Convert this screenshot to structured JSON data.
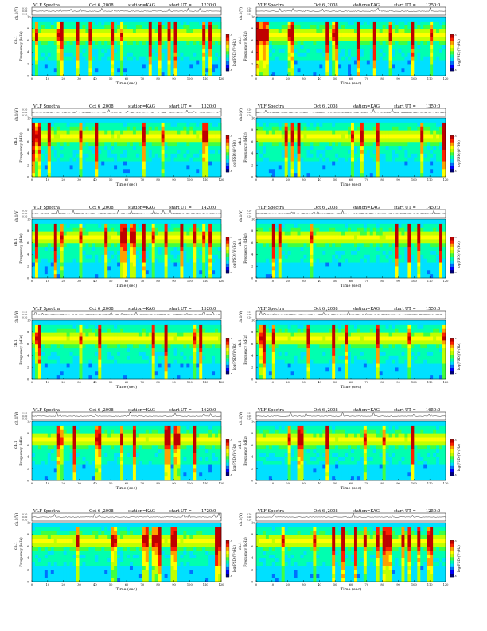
{
  "page": {
    "background": "#ffffff"
  },
  "panel_common": {
    "title_label": "VLF Spectra",
    "date": "Oct 6 ,2008",
    "station": "station=KAG",
    "start_label": "start  UT  =",
    "ch_axis_label": "ch.1(V)",
    "ch_ticks": [
      "0.20",
      "0.00",
      "0.20"
    ],
    "freq_axis_label": "Frequency  (kHz)",
    "freq_axis_prefix": "ch.1",
    "freq_ticks": [
      "0",
      "2",
      "4",
      "6",
      "8",
      "10"
    ],
    "x_axis_label": "Time  (sec)",
    "x_ticks": [
      "0",
      "10",
      "20",
      "30",
      "40",
      "50",
      "60",
      "70",
      "80",
      "90",
      "100",
      "110",
      "120"
    ],
    "colorbar_label": "log(PSD)(V²/Hz)",
    "colorbar_ticks": [
      "-3",
      "-6"
    ]
  },
  "colormap": [
    "#00007a",
    "#0000ff",
    "#0070ff",
    "#00e0ff",
    "#00ffb0",
    "#40ff40",
    "#c0ff00",
    "#ffff00",
    "#ffa000",
    "#ff2000",
    "#c00000"
  ],
  "panels": [
    {
      "start_ut": "1220:0",
      "hour": 12,
      "minute": 20,
      "channel": 1
    },
    {
      "start_ut": "1250:0",
      "hour": 12,
      "minute": 50,
      "channel": 1
    },
    {
      "start_ut": "1320:0",
      "hour": 13,
      "minute": 20,
      "channel": 1
    },
    {
      "start_ut": "1350:0",
      "hour": 13,
      "minute": 50,
      "channel": 1
    },
    {
      "start_ut": "1420:0",
      "hour": 14,
      "minute": 20,
      "channel": 1
    },
    {
      "start_ut": "1450:0",
      "hour": 14,
      "minute": 50,
      "channel": 1
    },
    {
      "start_ut": "1520:0",
      "hour": 15,
      "minute": 20,
      "channel": 1
    },
    {
      "start_ut": "1550:0",
      "hour": 15,
      "minute": 50,
      "channel": 1
    },
    {
      "start_ut": "1620:0",
      "hour": 16,
      "minute": 20,
      "channel": 1
    },
    {
      "start_ut": "1650:0",
      "hour": 16,
      "minute": 50,
      "channel": 1
    },
    {
      "start_ut": "1720:0",
      "hour": 17,
      "minute": 20,
      "channel": 1
    },
    {
      "start_ut": "1250:0",
      "hour": 12,
      "minute": 50,
      "channel": 1
    }
  ],
  "chart_data": [
    {
      "type": "heatmap",
      "title": "VLF Spectra   Oct 6 ,2008   station=KAG   start  UT  =1220:0",
      "xlabel": "Time  (sec)",
      "ylabel": "Frequency  (kHz)",
      "xlim": [
        0,
        120
      ],
      "ylim": [
        0,
        10
      ],
      "waveform_ylim": [
        -0.2,
        0.2
      ],
      "colorbar_label": "log(PSD)(V²/Hz)",
      "colorbar_range": [
        -6,
        -3
      ]
    },
    {
      "type": "heatmap",
      "title": "VLF Spectra   Oct 6 ,2008   station=KAG   start  UT  =1250:0",
      "xlabel": "Time  (sec)",
      "ylabel": "Frequency  (kHz)",
      "xlim": [
        0,
        120
      ],
      "ylim": [
        0,
        10
      ],
      "waveform_ylim": [
        -0.2,
        0.2
      ],
      "colorbar_label": "log(PSD)(V²/Hz)",
      "colorbar_range": [
        -6,
        -3
      ]
    },
    {
      "type": "heatmap",
      "title": "VLF Spectra   Oct 6 ,2008   station=KAG   start  UT  =1320:0",
      "xlabel": "Time  (sec)",
      "ylabel": "Frequency  (kHz)",
      "xlim": [
        0,
        120
      ],
      "ylim": [
        0,
        10
      ],
      "waveform_ylim": [
        -0.2,
        0.2
      ],
      "colorbar_label": "log(PSD)(V²/Hz)",
      "colorbar_range": [
        -6,
        -3
      ]
    },
    {
      "type": "heatmap",
      "title": "VLF Spectra   Oct 6 ,2008   station=KAG   start  UT  =1350:0",
      "xlabel": "Time  (sec)",
      "ylabel": "Frequency  (kHz)",
      "xlim": [
        0,
        120
      ],
      "ylim": [
        0,
        10
      ],
      "waveform_ylim": [
        -0.2,
        0.2
      ],
      "colorbar_label": "log(PSD)(V²/Hz)",
      "colorbar_range": [
        -6,
        -3
      ]
    },
    {
      "type": "heatmap",
      "title": "VLF Spectra   Oct 6 ,2008   station=KAG   start  UT  =1420:0",
      "xlabel": "Time  (sec)",
      "ylabel": "Frequency  (kHz)",
      "xlim": [
        0,
        120
      ],
      "ylim": [
        0,
        10
      ],
      "waveform_ylim": [
        -0.2,
        0.2
      ],
      "colorbar_label": "log(PSD)(V²/Hz)",
      "colorbar_range": [
        -6,
        -3
      ]
    },
    {
      "type": "heatmap",
      "title": "VLF Spectra   Oct 6 ,2008   station=KAG   start  UT  =1450:0",
      "xlabel": "Time  (sec)",
      "ylabel": "Frequency  (kHz)",
      "xlim": [
        0,
        120
      ],
      "ylim": [
        0,
        10
      ],
      "waveform_ylim": [
        -0.2,
        0.2
      ],
      "colorbar_label": "log(PSD)(V²/Hz)",
      "colorbar_range": [
        -6,
        -3
      ]
    },
    {
      "type": "heatmap",
      "title": "VLF Spectra   Oct 6 ,2008   station=KAG   start  UT  =1520:0",
      "xlabel": "Time  (sec)",
      "ylabel": "Frequency  (kHz)",
      "xlim": [
        0,
        120
      ],
      "ylim": [
        0,
        10
      ],
      "waveform_ylim": [
        -0.2,
        0.2
      ],
      "colorbar_label": "log(PSD)(V²/Hz)",
      "colorbar_range": [
        -6,
        -3
      ]
    },
    {
      "type": "heatmap",
      "title": "VLF Spectra   Oct 6 ,2008   station=KAG   start  UT  =1550:0",
      "xlabel": "Time  (sec)",
      "ylabel": "Frequency  (kHz)",
      "xlim": [
        0,
        120
      ],
      "ylim": [
        0,
        10
      ],
      "waveform_ylim": [
        -0.2,
        0.2
      ],
      "colorbar_label": "log(PSD)(V²/Hz)",
      "colorbar_range": [
        -6,
        -3
      ]
    },
    {
      "type": "heatmap",
      "title": "VLF Spectra   Oct 6 ,2008   station=KAG   start  UT  =1620:0",
      "xlabel": "Time  (sec)",
      "ylabel": "Frequency  (kHz)",
      "xlim": [
        0,
        120
      ],
      "ylim": [
        0,
        10
      ],
      "waveform_ylim": [
        -0.2,
        0.2
      ],
      "colorbar_label": "log(PSD)(V²/Hz)",
      "colorbar_range": [
        -6,
        -3
      ]
    },
    {
      "type": "heatmap",
      "title": "VLF Spectra   Oct 6 ,2008   station=KAG   start  UT  =1650:0",
      "xlabel": "Time  (sec)",
      "ylabel": "Frequency  (kHz)",
      "xlim": [
        0,
        120
      ],
      "ylim": [
        0,
        10
      ],
      "waveform_ylim": [
        -0.2,
        0.2
      ],
      "colorbar_label": "log(PSD)(V²/Hz)",
      "colorbar_range": [
        -6,
        -3
      ]
    },
    {
      "type": "heatmap",
      "title": "VLF Spectra   Oct 6 ,2008   station=KAG   start  UT  =1720:0",
      "xlabel": "Time  (sec)",
      "ylabel": "Frequency  (kHz)",
      "xlim": [
        0,
        120
      ],
      "ylim": [
        0,
        10
      ],
      "waveform_ylim": [
        -0.2,
        0.2
      ],
      "colorbar_label": "log(PSD)(V²/Hz)",
      "colorbar_range": [
        -6,
        -3
      ]
    },
    {
      "type": "heatmap",
      "title": "VLF Spectra   Oct 6 ,2008   station=KAG   start  UT  =1250:0",
      "xlabel": "Time  (sec)",
      "ylabel": "Frequency  (kHz)",
      "xlim": [
        0,
        120
      ],
      "ylim": [
        0,
        10
      ],
      "waveform_ylim": [
        -0.2,
        0.2
      ],
      "colorbar_label": "log(PSD)(V²/Hz)",
      "colorbar_range": [
        -6,
        -3
      ]
    }
  ]
}
